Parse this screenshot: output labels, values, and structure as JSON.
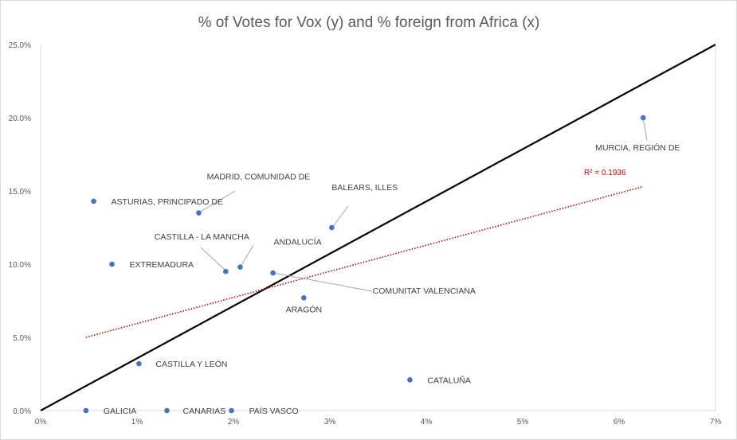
{
  "chart_data": {
    "type": "scatter",
    "title": "% of Votes for Vox (y) and % foreign from Africa (x)",
    "xlabel": "",
    "ylabel": "",
    "xlim": [
      0,
      7
    ],
    "ylim": [
      0,
      25
    ],
    "x_ticks": [
      "0%",
      "1%",
      "2%",
      "3%",
      "4%",
      "5%",
      "6%",
      "7%"
    ],
    "y_ticks": [
      "0.0%",
      "5.0%",
      "10.0%",
      "15.0%",
      "20.0%",
      "25.0%"
    ],
    "grid": false,
    "point_color": "#4472c4",
    "points": [
      {
        "label": "GALICIA",
        "x": 0.47,
        "y": 0.0
      },
      {
        "label": "CANARIAS",
        "x": 1.31,
        "y": 0.0
      },
      {
        "label": "PAÍS VASCO",
        "x": 1.98,
        "y": 0.0
      },
      {
        "label": "CASTILLA Y LEÓN",
        "x": 1.02,
        "y": 3.2
      },
      {
        "label": "CATALUÑA",
        "x": 3.83,
        "y": 2.1
      },
      {
        "label": "ARAGÓN",
        "x": 2.73,
        "y": 7.7
      },
      {
        "label": "COMUNITAT VALENCIANA",
        "x": 2.41,
        "y": 9.4
      },
      {
        "label": "ANDALUCÍA",
        "x": 2.07,
        "y": 9.8
      },
      {
        "label": "CASTILLA - LA MANCHA",
        "x": 1.92,
        "y": 9.5
      },
      {
        "label": "EXTREMADURA",
        "x": 0.74,
        "y": 10.0
      },
      {
        "label": "ASTURIAS, PRINCIPADO DE",
        "x": 0.55,
        "y": 14.3
      },
      {
        "label": "MADRID, COMUNIDAD DE",
        "x": 1.64,
        "y": 13.5
      },
      {
        "label": "BALEARS, ILLES",
        "x": 3.02,
        "y": 12.5
      },
      {
        "label": "MURCIA, REGIÓN DE",
        "x": 6.25,
        "y": 20.0
      }
    ],
    "trendline": {
      "type": "linear",
      "x": [
        0.47,
        6.25
      ],
      "y": [
        5.0,
        15.3
      ],
      "r2_label": "R² = 0.1936",
      "color": "#c00000"
    },
    "reference_line": {
      "x": [
        0,
        7
      ],
      "y": [
        0,
        25
      ],
      "color": "#000000"
    }
  }
}
